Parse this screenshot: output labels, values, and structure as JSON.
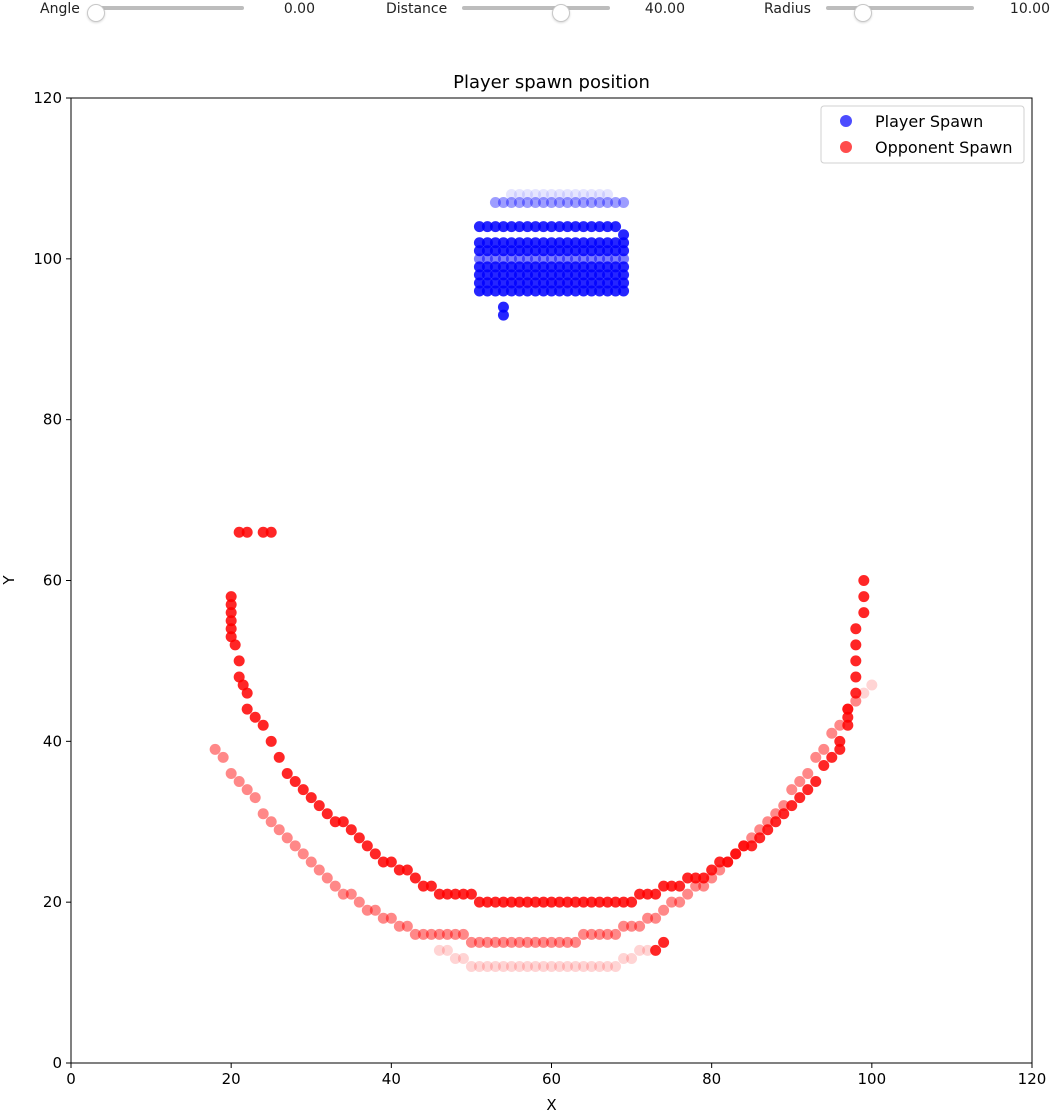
{
  "controls": {
    "angle": {
      "label": "Angle",
      "value": "0.00",
      "fraction": 0.0
    },
    "distance": {
      "label": "Distance",
      "value": "40.00",
      "fraction": 0.67
    },
    "radius": {
      "label": "Radius",
      "value": "10.00",
      "fraction": 0.25
    }
  },
  "chart_data": {
    "type": "scatter",
    "title": "Player spawn position",
    "xlabel": "X",
    "ylabel": "Y",
    "xlim": [
      0,
      120
    ],
    "ylim": [
      0,
      120
    ],
    "xticks": [
      "0",
      "20",
      "40",
      "60",
      "80",
      "100",
      "120"
    ],
    "yticks": [
      "0",
      "20",
      "40",
      "60",
      "80",
      "100",
      "120"
    ],
    "grid": false,
    "legend_position": "top-right",
    "series": [
      {
        "name": "Player Spawn",
        "color": "#0000ff",
        "x": [
          51,
          52,
          53,
          54,
          55,
          56,
          57,
          58,
          59,
          60,
          61,
          62,
          63,
          64,
          65,
          66,
          67,
          68,
          51,
          52,
          53,
          54,
          55,
          56,
          57,
          58,
          59,
          60,
          61,
          62,
          63,
          64,
          65,
          66,
          67,
          68,
          69,
          51,
          52,
          53,
          54,
          55,
          56,
          57,
          58,
          59,
          60,
          61,
          62,
          63,
          64,
          65,
          66,
          67,
          68,
          69,
          51,
          52,
          53,
          54,
          55,
          56,
          57,
          58,
          59,
          60,
          61,
          62,
          63,
          64,
          65,
          66,
          67,
          68,
          69,
          51,
          52,
          53,
          54,
          55,
          56,
          57,
          58,
          59,
          60,
          61,
          62,
          63,
          64,
          65,
          66,
          67,
          68,
          69,
          51,
          52,
          53,
          54,
          55,
          56,
          57,
          58,
          59,
          60,
          61,
          62,
          63,
          64,
          65,
          66,
          67,
          68,
          69,
          51,
          52,
          53,
          54,
          55,
          56,
          57,
          58,
          59,
          60,
          61,
          62,
          63,
          64,
          65,
          66,
          67,
          68,
          69,
          51,
          52,
          53,
          54,
          55,
          56,
          57,
          58,
          59,
          60,
          61,
          62,
          63,
          64,
          65,
          66,
          67,
          68,
          69,
          69,
          54,
          54,
          53,
          54,
          55,
          56,
          57,
          58,
          59,
          60,
          61,
          62,
          63,
          64,
          65,
          66,
          67,
          68,
          69,
          55,
          56,
          57,
          58,
          59,
          60,
          61,
          62,
          63,
          64,
          65,
          66,
          67
        ],
        "y": [
          104,
          104,
          104,
          104,
          104,
          104,
          104,
          104,
          104,
          104,
          104,
          104,
          104,
          104,
          104,
          104,
          104,
          104,
          102,
          102,
          102,
          102,
          102,
          102,
          102,
          102,
          102,
          102,
          102,
          102,
          102,
          102,
          102,
          102,
          102,
          102,
          102,
          101,
          101,
          101,
          101,
          101,
          101,
          101,
          101,
          101,
          101,
          101,
          101,
          101,
          101,
          101,
          101,
          101,
          101,
          101,
          99,
          99,
          99,
          99,
          99,
          99,
          99,
          99,
          99,
          99,
          99,
          99,
          99,
          99,
          99,
          99,
          99,
          99,
          99,
          98,
          98,
          98,
          98,
          98,
          98,
          98,
          98,
          98,
          98,
          98,
          98,
          98,
          98,
          98,
          98,
          98,
          98,
          98,
          97,
          97,
          97,
          97,
          97,
          97,
          97,
          97,
          97,
          97,
          97,
          97,
          97,
          97,
          97,
          97,
          97,
          97,
          97,
          96,
          96,
          96,
          96,
          96,
          96,
          96,
          96,
          96,
          96,
          96,
          96,
          96,
          96,
          96,
          96,
          96,
          96,
          96,
          100,
          100,
          100,
          100,
          100,
          100,
          100,
          100,
          100,
          100,
          100,
          100,
          100,
          100,
          100,
          100,
          100,
          100,
          100,
          103,
          94,
          93,
          107,
          107,
          107,
          107,
          107,
          107,
          107,
          107,
          107,
          107,
          107,
          107,
          107,
          107,
          107,
          107,
          107,
          108,
          108,
          108,
          108,
          108,
          108,
          108,
          108,
          108,
          108,
          108,
          108,
          108
        ],
        "alpha": [
          1,
          1,
          1,
          1,
          1,
          1,
          1,
          1,
          1,
          1,
          1,
          1,
          1,
          1,
          1,
          1,
          1,
          1,
          1,
          1,
          1,
          1,
          1,
          1,
          1,
          1,
          1,
          1,
          1,
          1,
          1,
          1,
          1,
          1,
          1,
          1,
          1,
          1,
          1,
          1,
          1,
          1,
          1,
          1,
          1,
          1,
          1,
          1,
          1,
          1,
          1,
          1,
          1,
          1,
          1,
          1,
          1,
          1,
          1,
          1,
          1,
          1,
          1,
          1,
          1,
          1,
          1,
          1,
          1,
          1,
          1,
          1,
          1,
          1,
          1,
          1,
          1,
          1,
          1,
          1,
          1,
          1,
          1,
          1,
          1,
          1,
          1,
          1,
          1,
          1,
          1,
          1,
          1,
          1,
          1,
          1,
          1,
          1,
          1,
          1,
          1,
          1,
          1,
          1,
          1,
          1,
          1,
          1,
          1,
          1,
          1,
          1,
          1,
          1,
          1,
          1,
          1,
          1,
          1,
          1,
          1,
          1,
          1,
          1,
          1,
          1,
          1,
          1,
          1,
          1,
          1,
          1,
          0.6,
          0.6,
          0.6,
          0.6,
          0.6,
          0.6,
          0.6,
          0.6,
          0.6,
          0.6,
          0.6,
          0.6,
          0.6,
          0.6,
          0.6,
          0.6,
          0.6,
          0.6,
          0.6,
          1,
          1,
          1,
          0.45,
          0.45,
          0.45,
          0.45,
          0.45,
          0.45,
          0.45,
          0.45,
          0.45,
          0.45,
          0.45,
          0.45,
          0.45,
          0.45,
          0.45,
          0.45,
          0.45,
          0.12,
          0.12,
          0.12,
          0.12,
          0.12,
          0.12,
          0.12,
          0.12,
          0.12,
          0.12,
          0.12,
          0.12,
          0.12
        ]
      },
      {
        "name": "Opponent Spawn",
        "color": "#ff0000",
        "x": [
          20,
          20,
          20,
          20,
          20,
          20,
          20.5,
          21,
          21,
          21.5,
          22,
          22,
          23,
          24,
          25,
          26,
          27,
          28,
          29,
          30,
          31,
          32,
          33,
          34,
          35,
          36,
          37,
          38,
          39,
          40,
          41,
          42,
          43,
          44,
          45,
          46,
          47,
          48,
          49,
          50,
          51,
          52,
          53,
          54,
          55,
          56,
          57,
          58,
          59,
          60,
          61,
          62,
          63,
          64,
          65,
          66,
          67,
          68,
          69,
          70,
          71,
          72,
          73,
          74,
          75,
          76,
          77,
          78,
          79,
          80,
          81,
          82,
          83,
          84,
          85,
          86,
          87,
          88,
          89,
          90,
          91,
          92,
          93,
          94,
          95,
          96,
          96,
          97,
          97,
          97,
          98,
          98,
          98,
          98,
          98,
          99,
          99,
          99,
          18,
          19,
          20,
          21,
          22,
          23,
          24,
          25,
          26,
          27,
          28,
          29,
          30,
          31,
          32,
          33,
          34,
          35,
          36,
          37,
          38,
          39,
          40,
          41,
          42,
          43,
          44,
          45,
          46,
          47,
          48,
          49,
          50,
          51,
          52,
          53,
          54,
          55,
          56,
          57,
          58,
          59,
          60,
          61,
          62,
          63,
          64,
          65,
          66,
          67,
          68,
          69,
          70,
          71,
          72,
          73,
          74,
          75,
          76,
          77,
          78,
          79,
          80,
          81,
          82,
          83,
          84,
          85,
          86,
          87,
          88,
          89,
          90,
          91,
          92,
          93,
          94,
          95,
          96,
          97,
          98,
          99,
          100,
          46,
          47,
          48,
          49,
          50,
          51,
          52,
          53,
          54,
          55,
          56,
          57,
          58,
          59,
          60,
          61,
          62,
          63,
          64,
          65,
          66,
          67,
          68,
          69,
          70,
          71,
          72,
          73,
          74,
          21,
          22,
          24,
          25
        ],
        "y": [
          58,
          57,
          56,
          55,
          54,
          53,
          52,
          50,
          48,
          47,
          46,
          44,
          43,
          42,
          40,
          38,
          36,
          35,
          34,
          33,
          32,
          31,
          30,
          30,
          29,
          28,
          27,
          26,
          25,
          25,
          24,
          24,
          23,
          22,
          22,
          21,
          21,
          21,
          21,
          21,
          20,
          20,
          20,
          20,
          20,
          20,
          20,
          20,
          20,
          20,
          20,
          20,
          20,
          20,
          20,
          20,
          20,
          20,
          20,
          20,
          21,
          21,
          21,
          22,
          22,
          22,
          23,
          23,
          23,
          24,
          25,
          25,
          26,
          27,
          27,
          28,
          29,
          30,
          31,
          32,
          33,
          34,
          35,
          37,
          38,
          39,
          40,
          42,
          43,
          44,
          46,
          48,
          50,
          52,
          54,
          56,
          58,
          60,
          39,
          38,
          36,
          35,
          34,
          33,
          31,
          30,
          29,
          28,
          27,
          26,
          25,
          24,
          23,
          22,
          21,
          21,
          20,
          19,
          19,
          18,
          18,
          17,
          17,
          16,
          16,
          16,
          16,
          16,
          16,
          16,
          15,
          15,
          15,
          15,
          15,
          15,
          15,
          15,
          15,
          15,
          15,
          15,
          15,
          15,
          16,
          16,
          16,
          16,
          16,
          17,
          17,
          17,
          18,
          18,
          19,
          20,
          20,
          21,
          22,
          22,
          23,
          24,
          25,
          26,
          27,
          28,
          29,
          30,
          31,
          32,
          34,
          35,
          36,
          38,
          39,
          41,
          42,
          44,
          45,
          46,
          47,
          14,
          14,
          13,
          13,
          12,
          12,
          12,
          12,
          12,
          12,
          12,
          12,
          12,
          12,
          12,
          12,
          12,
          12,
          12,
          12,
          12,
          12,
          12,
          13,
          13,
          14,
          14,
          14,
          15,
          66,
          66,
          66,
          66
        ],
        "alpha": [
          1,
          1,
          1,
          1,
          1,
          1,
          1,
          1,
          1,
          1,
          1,
          1,
          1,
          1,
          1,
          1,
          1,
          1,
          1,
          1,
          1,
          1,
          1,
          1,
          1,
          1,
          1,
          1,
          1,
          1,
          1,
          1,
          1,
          1,
          1,
          1,
          1,
          1,
          1,
          1,
          1,
          1,
          1,
          1,
          1,
          1,
          1,
          1,
          1,
          1,
          1,
          1,
          1,
          1,
          1,
          1,
          1,
          1,
          1,
          1,
          1,
          1,
          1,
          1,
          1,
          1,
          1,
          1,
          1,
          1,
          1,
          1,
          1,
          1,
          1,
          1,
          1,
          1,
          1,
          1,
          1,
          1,
          1,
          1,
          1,
          1,
          1,
          1,
          1,
          1,
          1,
          1,
          1,
          1,
          1,
          1,
          1,
          1,
          0.55,
          0.55,
          0.55,
          0.55,
          0.55,
          0.55,
          0.55,
          0.55,
          0.55,
          0.55,
          0.55,
          0.55,
          0.55,
          0.55,
          0.55,
          0.55,
          0.55,
          0.55,
          0.55,
          0.55,
          0.55,
          0.55,
          0.55,
          0.55,
          0.55,
          0.55,
          0.55,
          0.55,
          0.55,
          0.55,
          0.55,
          0.55,
          0.55,
          0.55,
          0.55,
          0.55,
          0.55,
          0.55,
          0.55,
          0.55,
          0.55,
          0.55,
          0.55,
          0.55,
          0.55,
          0.55,
          0.55,
          0.55,
          0.55,
          0.55,
          0.55,
          0.55,
          0.55,
          0.55,
          0.55,
          0.55,
          0.55,
          0.55,
          0.55,
          0.55,
          0.55,
          0.55,
          0.55,
          0.55,
          0.55,
          0.55,
          0.55,
          0.55,
          0.55,
          0.55,
          0.55,
          0.55,
          0.55,
          0.55,
          0.55,
          0.55,
          0.55,
          0.55,
          0.55,
          0.55,
          0.55,
          0.2,
          0.2,
          0.2,
          0.2,
          0.2,
          0.2,
          0.2,
          0.2,
          0.2,
          0.2,
          0.2,
          0.2,
          0.2,
          0.2,
          0.2,
          0.2,
          0.2,
          0.2,
          0.2,
          0.2,
          0.2,
          0.2,
          0.2,
          0.2,
          0.2,
          0.2,
          0.2,
          0.2,
          0.2,
          1,
          1,
          1,
          1
        ]
      }
    ]
  }
}
